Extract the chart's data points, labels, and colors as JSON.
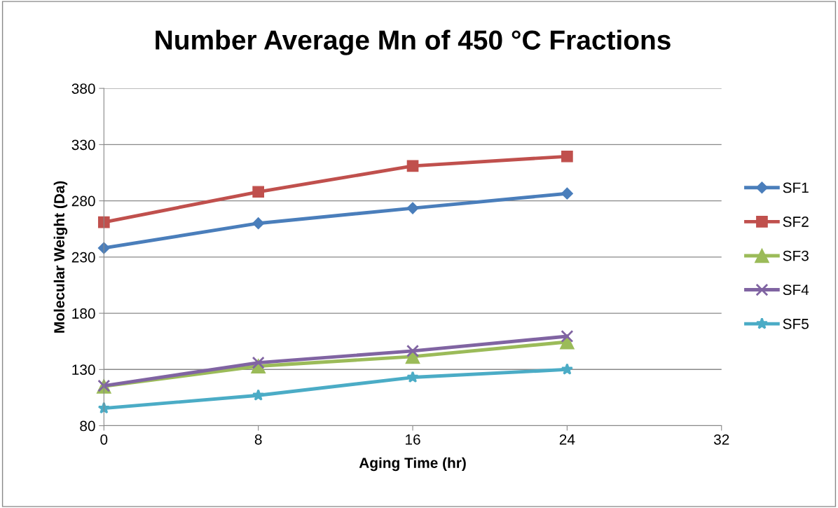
{
  "chart_data": {
    "type": "line",
    "title": "Number Average Mn of 450 °C Fractions",
    "xlabel": "Aging Time (hr)",
    "ylabel": "Molecular Weight (Da)",
    "x": [
      0,
      8,
      16,
      24
    ],
    "series": [
      {
        "name": "SF1",
        "color": "#4a7ebb",
        "marker": "diamond",
        "values": [
          238,
          260,
          273.5,
          286.5
        ]
      },
      {
        "name": "SF2",
        "color": "#c0504d",
        "marker": "square",
        "values": [
          261,
          288,
          311,
          319.5
        ]
      },
      {
        "name": "SF3",
        "color": "#9bbb59",
        "marker": "triangle",
        "values": [
          115,
          133,
          141.5,
          154.5
        ]
      },
      {
        "name": "SF4",
        "color": "#8064a2",
        "marker": "cross",
        "values": [
          115.5,
          136,
          146.5,
          159.5
        ]
      },
      {
        "name": "SF5",
        "color": "#4bacc6",
        "marker": "star",
        "values": [
          95.5,
          107,
          123,
          130
        ]
      }
    ],
    "xlim": [
      0,
      32
    ],
    "xticks": [
      0,
      8,
      16,
      24,
      32
    ],
    "ylim": [
      80,
      380
    ],
    "yticks": [
      80,
      130,
      180,
      230,
      280,
      330,
      380
    ],
    "grid": "y",
    "legend": "right"
  }
}
